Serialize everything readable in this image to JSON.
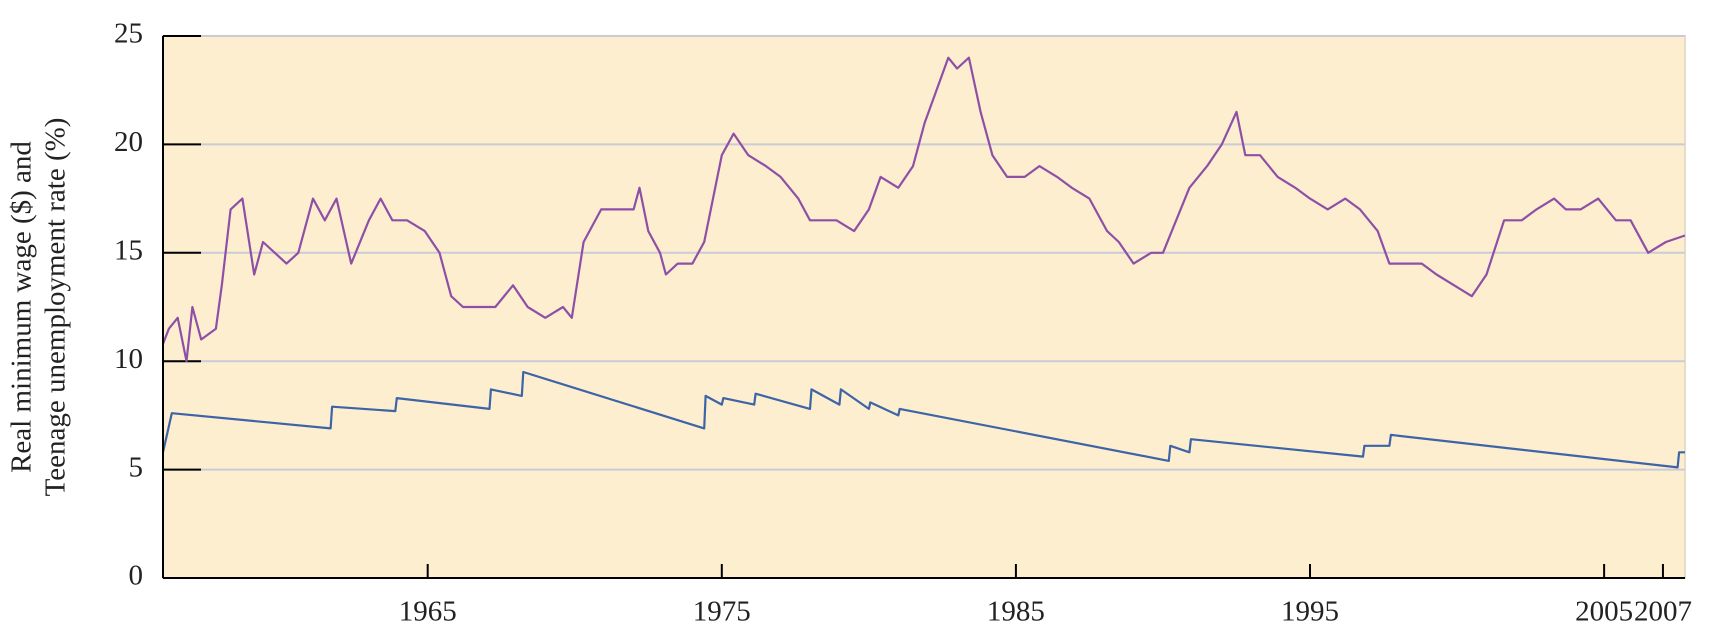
{
  "chart_data": {
    "type": "line",
    "ylabel": [
      "Real minimum wage ($) and",
      "Teenage unemployment rate (%)"
    ],
    "xlim": [
      1956,
      2007.75
    ],
    "xticks": [
      1965,
      1975,
      1985,
      1995,
      2005,
      2007
    ],
    "ylim": [
      0,
      25
    ],
    "yticks": [
      0,
      5,
      10,
      15,
      20,
      25
    ],
    "grid": true,
    "background": "#fdeed0",
    "series": [
      {
        "color": "#8e4fa6",
        "x": [
          1956,
          1956.2,
          1956.5,
          1956.8,
          1957,
          1957.3,
          1957.8,
          1958,
          1958.3,
          1958.7,
          1959.1,
          1959.4,
          1959.8,
          1960.2,
          1960.6,
          1961.1,
          1961.5,
          1961.9,
          1962.4,
          1963,
          1963.4,
          1963.8,
          1964.3,
          1964.9,
          1965.4,
          1965.8,
          1966.2,
          1966.7,
          1967.3,
          1967.9,
          1968.4,
          1969,
          1969.6,
          1969.9,
          1970.3,
          1970.9,
          1971.4,
          1972,
          1972.2,
          1972.5,
          1972.9,
          1973.1,
          1973.5,
          1974,
          1974.4,
          1974.7,
          1975,
          1975.4,
          1975.9,
          1976.5,
          1977,
          1977.6,
          1978,
          1978.4,
          1978.9,
          1979.5,
          1980,
          1980.4,
          1981,
          1981.5,
          1981.9,
          1982.3,
          1982.7,
          1983,
          1983.4,
          1983.8,
          1984.2,
          1984.7,
          1985.3,
          1985.8,
          1986.4,
          1986.9,
          1987.5,
          1988.1,
          1988.5,
          1989,
          1989.6,
          1990,
          1990.3,
          1990.9,
          1991.5,
          1992,
          1992.5,
          1992.8,
          1993.3,
          1993.9,
          1994.5,
          1995,
          1995.6,
          1996.2,
          1996.7,
          1997.3,
          1997.7,
          1998.2,
          1998.8,
          1999.3,
          1999.9,
          2000.5,
          2001,
          2001.6,
          2002.2,
          2002.7,
          2003.3,
          2003.7,
          2004.2,
          2004.8,
          2005.4,
          2005.9,
          2006.5,
          2007.1,
          2007.75
        ],
        "values": [
          10.8,
          11.5,
          12,
          10,
          12.5,
          11,
          11.5,
          13.5,
          17,
          17.5,
          14,
          15.5,
          15,
          14.5,
          15,
          17.5,
          16.5,
          17.5,
          14.5,
          16.5,
          17.5,
          16.5,
          16.5,
          16,
          15,
          13,
          12.5,
          12.5,
          12.5,
          13.5,
          12.5,
          12,
          12.5,
          12,
          15.5,
          17,
          17,
          17,
          18,
          16,
          15,
          14,
          14.5,
          14.5,
          15.5,
          17.5,
          19.5,
          20.5,
          19.5,
          19,
          18.5,
          17.5,
          16.5,
          16.5,
          16.5,
          16,
          17,
          18.5,
          18,
          19,
          21,
          22.5,
          24,
          23.5,
          24,
          21.5,
          19.5,
          18.5,
          18.5,
          19,
          18.5,
          18,
          17.5,
          16,
          15.5,
          14.5,
          15,
          15,
          16,
          18,
          19,
          20,
          21.5,
          19.5,
          19.5,
          18.5,
          18,
          17.5,
          17,
          17.5,
          17,
          16,
          14.5,
          14.5,
          14.5,
          14,
          13.5,
          13,
          14,
          16.5,
          16.5,
          17,
          17.5,
          17,
          17,
          17.5,
          16.5,
          16.5,
          15,
          15.5,
          15.8
        ]
      },
      {
        "color": "#3d64a6",
        "x": [
          1956,
          1956.3,
          1961.7,
          1961.75,
          1963.9,
          1963.95,
          1967.1,
          1967.15,
          1968.2,
          1968.25,
          1974.4,
          1974.45,
          1975,
          1975.05,
          1976.1,
          1976.15,
          1978,
          1978.05,
          1979,
          1979.05,
          1980,
          1980.05,
          1981,
          1981.05,
          1990.2,
          1990.25,
          1990.9,
          1990.95,
          1996.8,
          1996.85,
          1997.7,
          1997.75,
          2007.5,
          2007.55,
          2007.75
        ],
        "values": [
          5.8,
          7.6,
          6.9,
          7.9,
          7.7,
          8.3,
          7.8,
          8.7,
          8.4,
          9.5,
          6.9,
          8.4,
          8.0,
          8.3,
          8.0,
          8.5,
          7.8,
          8.7,
          8.0,
          8.7,
          7.8,
          8.1,
          7.5,
          7.8,
          5.4,
          6.1,
          5.8,
          6.4,
          5.6,
          6.1,
          6.1,
          6.6,
          5.1,
          5.8,
          5.8
        ]
      }
    ]
  }
}
